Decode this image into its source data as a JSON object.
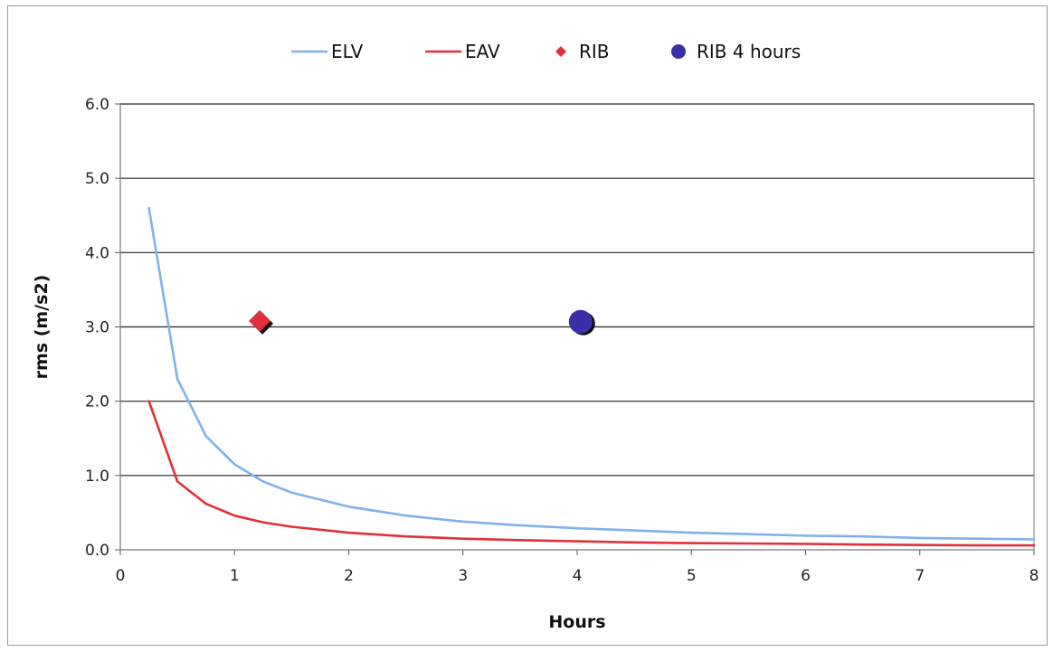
{
  "chart_data": {
    "type": "line",
    "xlabel": "Hours",
    "ylabel": "rms (m/s2)",
    "xlim": [
      0,
      8
    ],
    "ylim": [
      0,
      6
    ],
    "x_ticks": [
      "0",
      "1",
      "2",
      "3",
      "4",
      "5",
      "6",
      "7",
      "8"
    ],
    "y_ticks": [
      "0.0",
      "1.0",
      "2.0",
      "3.0",
      "4.0",
      "5.0",
      "6.0"
    ],
    "grid": "horizontal",
    "legend_position": "top",
    "series": [
      {
        "name": "ELV",
        "kind": "line",
        "color": "#7fb2ea",
        "x": [
          0.25,
          0.5,
          0.75,
          1,
          1.25,
          1.5,
          2,
          2.5,
          3,
          3.5,
          4,
          4.5,
          5,
          5.5,
          6,
          6.5,
          7,
          7.5,
          8
        ],
        "y": [
          4.6,
          2.3,
          1.53,
          1.15,
          0.92,
          0.77,
          0.58,
          0.46,
          0.38,
          0.33,
          0.29,
          0.26,
          0.23,
          0.21,
          0.19,
          0.18,
          0.16,
          0.15,
          0.14
        ]
      },
      {
        "name": "EAV",
        "kind": "line",
        "color": "#e0303a",
        "x": [
          0.25,
          0.5,
          0.75,
          1,
          1.25,
          1.5,
          2,
          2.5,
          3,
          3.5,
          4,
          4.5,
          5,
          5.5,
          6,
          6.5,
          7,
          7.5,
          8
        ],
        "y": [
          2.0,
          0.92,
          0.62,
          0.46,
          0.37,
          0.31,
          0.23,
          0.18,
          0.15,
          0.13,
          0.115,
          0.1,
          0.09,
          0.085,
          0.08,
          0.07,
          0.065,
          0.06,
          0.06
        ]
      },
      {
        "name": "RIB",
        "kind": "marker",
        "marker": "diamond",
        "color": "#e0303a",
        "x": [
          1.22
        ],
        "y": [
          3.08
        ]
      },
      {
        "name": "RIB 4 hours",
        "kind": "marker",
        "marker": "circle",
        "color": "#3a2fa8",
        "x": [
          4.03
        ],
        "y": [
          3.07
        ]
      }
    ]
  }
}
